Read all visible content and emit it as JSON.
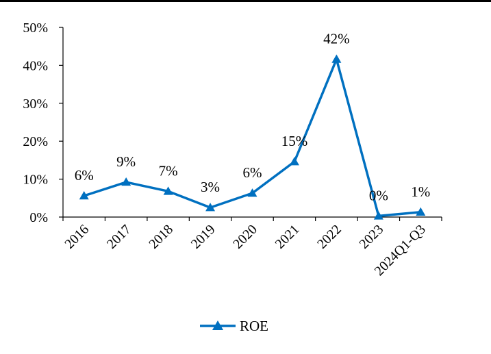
{
  "colors": {
    "series_line": "#0070C0",
    "axis": "#000000",
    "text": "#000000",
    "rule": "#000000"
  },
  "chart_data": {
    "type": "line",
    "title": "",
    "xlabel": "",
    "ylabel": "",
    "categories": [
      "2016",
      "2017",
      "2018",
      "2019",
      "2020",
      "2021",
      "2022",
      "2023",
      "2024Q1-Q3"
    ],
    "ylim": [
      0,
      50
    ],
    "y_ticks": [
      0,
      10,
      20,
      30,
      40,
      50
    ],
    "y_tick_labels": [
      "0%",
      "10%",
      "20%",
      "30%",
      "40%",
      "50%"
    ],
    "grid": false,
    "legend": "bottom",
    "series": [
      {
        "name": "ROE",
        "marker": "triangle",
        "values": [
          5.6,
          9.2,
          6.8,
          2.5,
          6.3,
          14.6,
          41.6,
          0.3,
          1.3
        ],
        "data_labels": [
          "6%",
          "9%",
          "7%",
          "3%",
          "6%",
          "15%",
          "42%",
          "0%",
          "1%"
        ]
      }
    ]
  }
}
